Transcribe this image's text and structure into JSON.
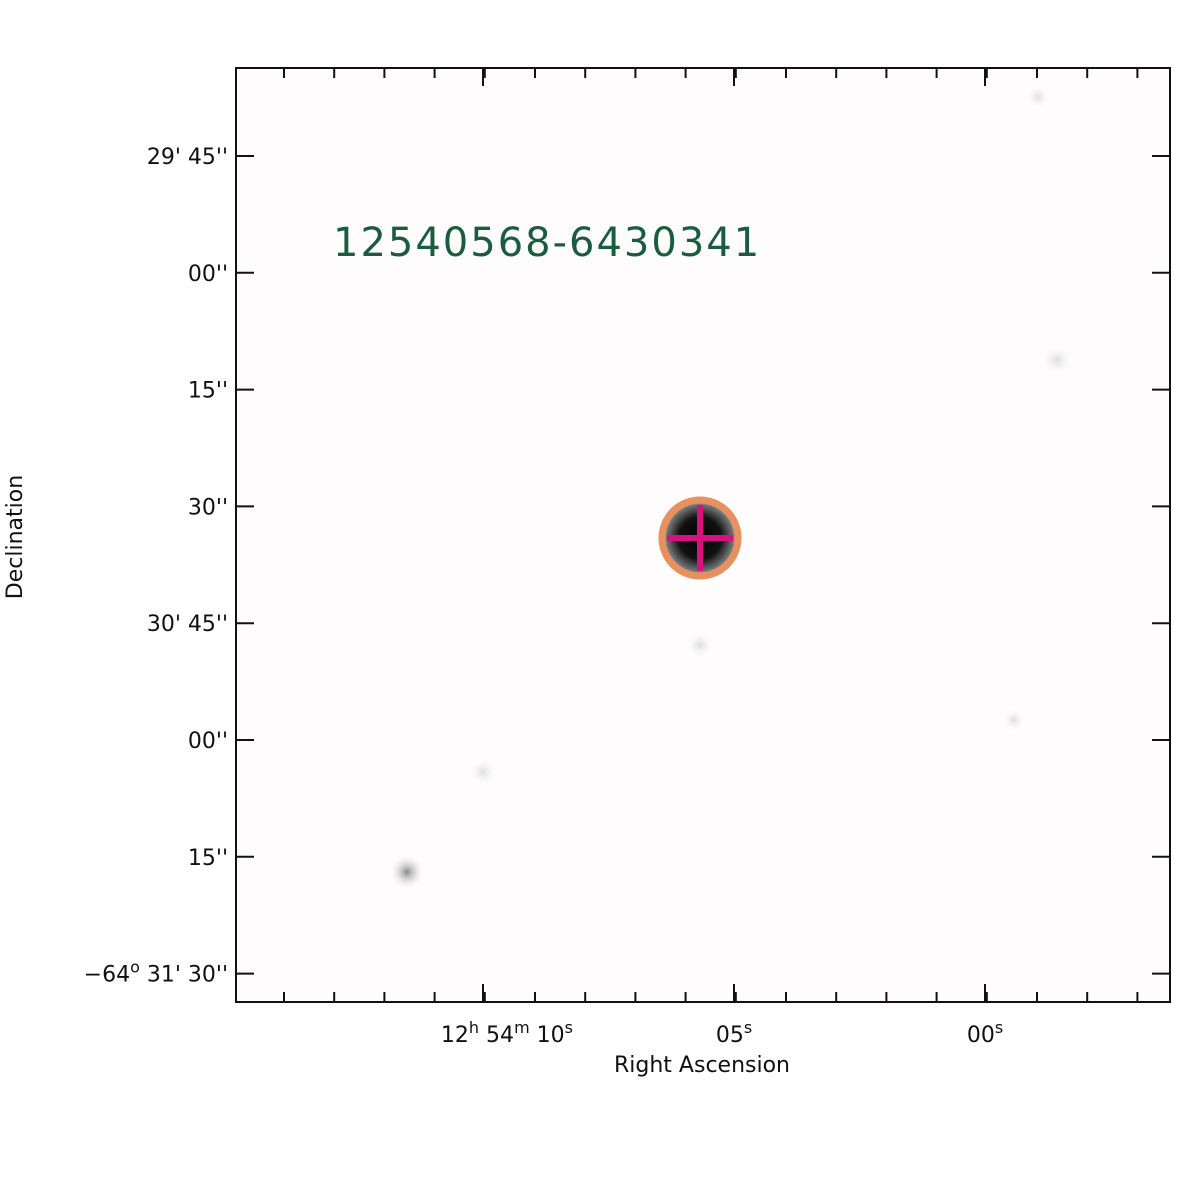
{
  "image_label": "12540568-6430341",
  "x_axis": {
    "title": "Right Ascension",
    "ticks": [
      [
        {
          "text": "12",
          "sup": "h"
        },
        {
          "text": " 54",
          "sup": "m"
        },
        {
          "text": " 10",
          "sup": "s"
        }
      ],
      [
        {
          "text": "05",
          "sup": "s"
        }
      ],
      [
        {
          "text": "00",
          "sup": "s"
        }
      ]
    ]
  },
  "y_axis": {
    "title": "Declination",
    "ticks": [
      [
        {
          "text": "29' 45''"
        }
      ],
      [
        {
          "text": "00''"
        }
      ],
      [
        {
          "text": "15''"
        }
      ],
      [
        {
          "text": "30''"
        }
      ],
      [
        {
          "text": "30' 45''"
        }
      ],
      [
        {
          "text": "00''"
        }
      ],
      [
        {
          "text": "15''"
        }
      ],
      [
        {
          "text": "−64",
          "sup": "o"
        },
        {
          "text": " 31' 30''"
        }
      ]
    ]
  }
}
